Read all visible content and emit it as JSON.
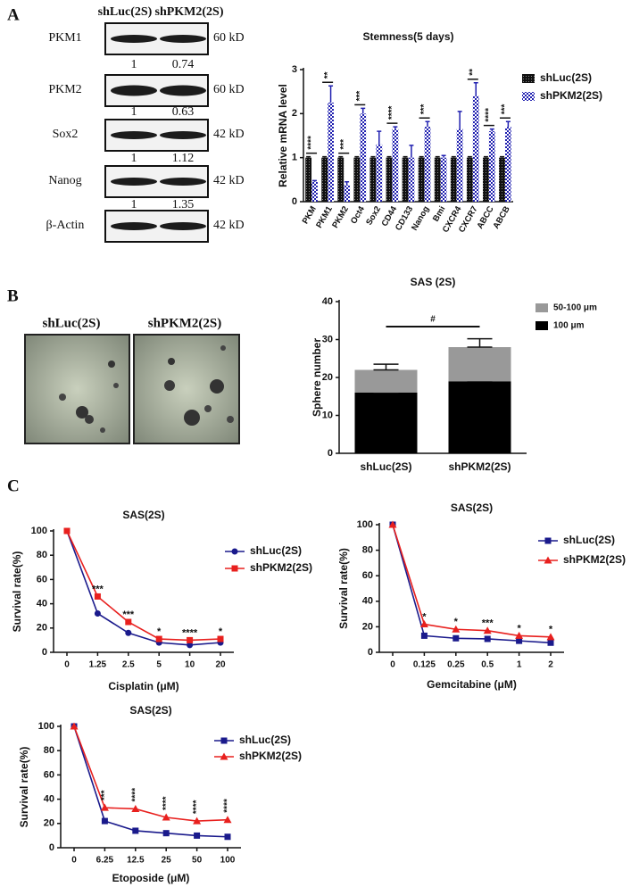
{
  "panels": [
    "A",
    "B",
    "C"
  ],
  "blot": {
    "lanes": [
      "shLuc(2S)",
      "shPKM2(2S)"
    ],
    "rows": [
      {
        "protein": "PKM1",
        "size": "60 kD",
        "ratios": [
          1,
          0.74
        ]
      },
      {
        "protein": "PKM2",
        "size": "60 kD",
        "ratios": [
          1,
          0.63
        ]
      },
      {
        "protein": "Sox2",
        "size": "42 kD",
        "ratios": [
          1,
          1.12
        ]
      },
      {
        "protein": "Nanog",
        "size": "42 kD",
        "ratios": [
          1,
          1.35
        ]
      },
      {
        "protein": "β-Actin",
        "size": "42 kD"
      }
    ]
  },
  "micrographs": [
    "shLuc(2S)",
    "shPKM2(2S)"
  ],
  "chart_data": [
    {
      "type": "bar",
      "title": "Stemness(5 days)",
      "y_label": "Relative mRNA level",
      "categories": [
        "PKM",
        "PKM1",
        "PKM2",
        "Oct4",
        "Sox2",
        "CD44",
        "CD133",
        "Nanog",
        "Bmi",
        "CXCR4",
        "CXCR7",
        "ABCC",
        "ABCB"
      ],
      "ylim": [
        0,
        3
      ],
      "yticks": [
        0,
        1,
        2,
        3
      ],
      "legend": "right",
      "series": [
        {
          "name": "shLuc(2S)",
          "color": "#111111",
          "pattern": "dots",
          "values": [
            1,
            1,
            1,
            1,
            1,
            1,
            1,
            1,
            1,
            1,
            1,
            1,
            1
          ],
          "errors": [
            0.02,
            0.02,
            0.02,
            0.02,
            0.02,
            0.02,
            0.02,
            0.02,
            0.02,
            0.02,
            0.02,
            0.02,
            0.02
          ]
        },
        {
          "name": "shPKM2(2S)",
          "color": "#2020b0",
          "pattern": "checker",
          "values": [
            0.45,
            2.25,
            0.38,
            2.0,
            1.3,
            1.65,
            1.0,
            1.7,
            1.0,
            1.65,
            2.4,
            1.6,
            1.7
          ],
          "errors": [
            0.03,
            0.38,
            0.07,
            0.12,
            0.3,
            0.05,
            0.28,
            0.12,
            0.05,
            0.4,
            0.3,
            0.05,
            0.12
          ]
        }
      ],
      "significance": [
        "****",
        "**",
        "***",
        "***",
        null,
        "****",
        null,
        "***",
        null,
        null,
        "**",
        "****",
        "***"
      ]
    },
    {
      "type": "bar",
      "stacked": true,
      "title": "SAS (2S)",
      "y_label": "Sphere number",
      "categories": [
        "shLuc(2S)",
        "shPKM2(2S)"
      ],
      "ylim": [
        0,
        40
      ],
      "yticks": [
        0,
        10,
        20,
        30,
        40
      ],
      "legend": "right",
      "series": [
        {
          "name": "100 μm",
          "color": "#000000",
          "values": [
            16,
            19
          ],
          "errors": [
            3.5,
            4.5
          ]
        },
        {
          "name": "50-100 μm",
          "color": "#999999",
          "values": [
            6,
            9
          ],
          "errors": [
            1.5,
            2.2
          ]
        }
      ],
      "bracket_label": "#"
    },
    {
      "type": "line",
      "title": "SAS(2S)",
      "x_label": "Cisplatin (μM)",
      "y_label": "Survival rate(%)",
      "categories": [
        "0",
        "1.25",
        "2.5",
        "5",
        "10",
        "20"
      ],
      "ylim": [
        0,
        100
      ],
      "yticks": [
        0,
        20,
        40,
        60,
        80,
        100
      ],
      "legend": "right",
      "series": [
        {
          "name": "shLuc(2S)",
          "color": "#1a1a8c",
          "marker": "circle",
          "values": [
            100,
            32,
            16,
            8,
            6,
            8
          ]
        },
        {
          "name": "shPKM2(2S)",
          "color": "#e8201e",
          "marker": "square",
          "values": [
            100,
            46,
            25,
            11,
            10,
            11
          ]
        }
      ],
      "significance": [
        null,
        "***",
        "***",
        "*",
        "****",
        "*"
      ]
    },
    {
      "type": "line",
      "title": "SAS(2S)",
      "x_label": "Gemcitabine (μM)",
      "y_label": "Survival rate(%)",
      "categories": [
        "0",
        "0.125",
        "0.25",
        "0.5",
        "1",
        "2"
      ],
      "ylim": [
        0,
        100
      ],
      "yticks": [
        0,
        20,
        40,
        60,
        80,
        100
      ],
      "legend": "right",
      "series": [
        {
          "name": "shLuc(2S)",
          "color": "#1a1a8c",
          "marker": "square",
          "values": [
            100,
            13,
            11,
            10.5,
            9,
            7.5
          ]
        },
        {
          "name": "shPKM2(2S)",
          "color": "#e8201e",
          "marker": "triangle",
          "values": [
            100,
            22,
            18,
            17,
            13,
            12
          ]
        }
      ],
      "significance": [
        null,
        "*",
        "*",
        "***",
        "*",
        "*"
      ]
    },
    {
      "type": "line",
      "title": "SAS(2S)",
      "x_label": "Etoposide (μM)",
      "y_label": "Survival rate(%)",
      "categories": [
        "0",
        "6.25",
        "12.5",
        "25",
        "50",
        "100"
      ],
      "ylim": [
        0,
        100
      ],
      "yticks": [
        0,
        20,
        40,
        60,
        80,
        100
      ],
      "legend": "right",
      "series": [
        {
          "name": "shLuc(2S)",
          "color": "#1a1a8c",
          "marker": "square",
          "values": [
            100,
            22,
            14,
            12,
            10,
            9
          ]
        },
        {
          "name": "shPKM2(2S)",
          "color": "#e8201e",
          "marker": "triangle",
          "values": [
            100,
            33,
            32,
            25,
            22,
            23
          ]
        }
      ],
      "significance": [
        null,
        "***",
        "****",
        "****",
        "****",
        "****"
      ]
    }
  ]
}
